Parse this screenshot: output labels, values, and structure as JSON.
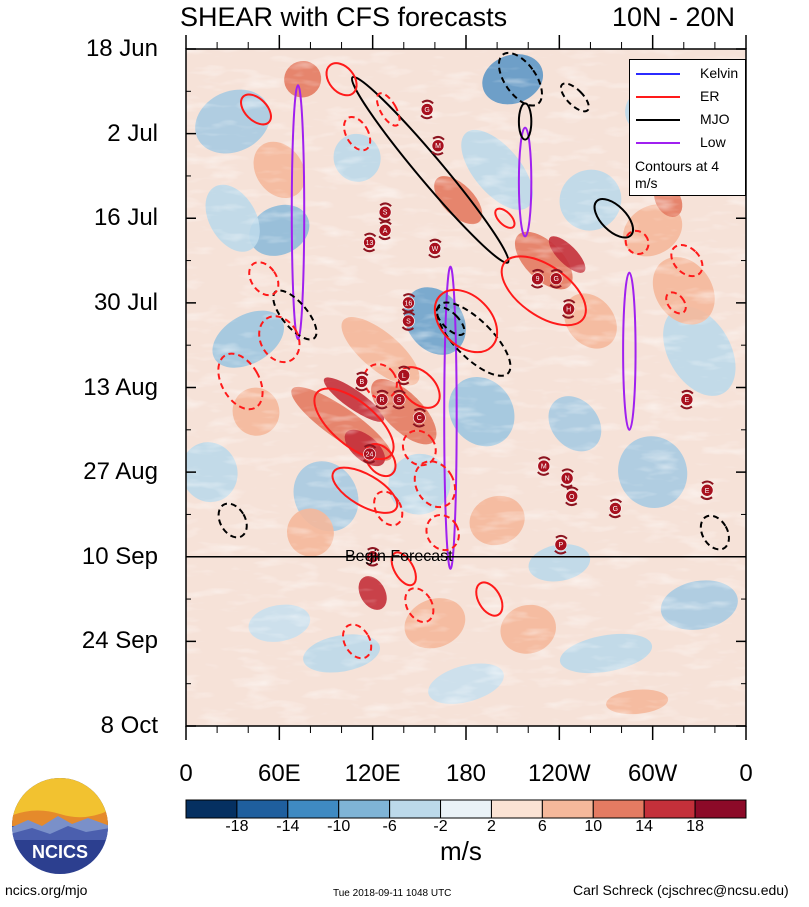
{
  "title": {
    "left": "SHEAR with CFS forecasts",
    "right": "10N - 20N"
  },
  "chart_data": {
    "type": "heatmap",
    "title": "SHEAR with CFS forecasts",
    "region": "10N - 20N",
    "x_axis": {
      "ticks": [
        "0",
        "60E",
        "120E",
        "180",
        "120W",
        "60W",
        "0"
      ],
      "range_deg": [
        0,
        360
      ]
    },
    "y_axis": {
      "ticks": [
        "18 Jun",
        "2 Jul",
        "16 Jul",
        "30 Jul",
        "13 Aug",
        "27 Aug",
        "10 Sep",
        "24 Sep",
        "8 Oct"
      ],
      "range_days": [
        0,
        112
      ]
    },
    "forecast_start": {
      "label": "Begin Forecast",
      "day": 84
    },
    "colorbar": {
      "units": "m/s",
      "levels": [
        -18,
        -14,
        -10,
        -6,
        -2,
        2,
        6,
        10,
        14,
        18
      ],
      "tick_labels": [
        "-18",
        "-14",
        "-10",
        "-6",
        "-2",
        "2",
        "6",
        "10",
        "14",
        "18"
      ],
      "colors": [
        "#053061",
        "#1f5f9e",
        "#3f8ac2",
        "#7fb4d6",
        "#bcd9ea",
        "#eaf2f7",
        "#fbe3d4",
        "#f5b89b",
        "#e47b62",
        "#c4303a",
        "#8c0a28"
      ]
    },
    "legend": [
      {
        "name": "Kelvin",
        "color": "#2b2bff"
      },
      {
        "name": "ER",
        "color": "#ff1a1a"
      },
      {
        "name": "MJO",
        "color": "#000000"
      },
      {
        "name": "Low",
        "color": "#a020f0"
      }
    ],
    "legend_note": "Contours at 4 m/s",
    "storms": [
      {
        "label": "G",
        "lon": 155,
        "day": 10
      },
      {
        "label": "M",
        "lon": 162,
        "day": 16
      },
      {
        "label": "S",
        "lon": 128,
        "day": 27
      },
      {
        "label": "A",
        "lon": 128,
        "day": 30
      },
      {
        "label": "13",
        "lon": 118,
        "day": 32
      },
      {
        "label": "W",
        "lon": 160,
        "day": 33
      },
      {
        "label": "9",
        "lon": 226,
        "day": 38
      },
      {
        "label": "G",
        "lon": 238,
        "day": 38
      },
      {
        "label": "16",
        "lon": 143,
        "day": 42
      },
      {
        "label": "S",
        "lon": 143,
        "day": 45
      },
      {
        "label": "H",
        "lon": 246,
        "day": 43
      },
      {
        "label": "B",
        "lon": 113,
        "day": 55
      },
      {
        "label": "R",
        "lon": 126,
        "day": 58
      },
      {
        "label": "L",
        "lon": 140,
        "day": 54
      },
      {
        "label": "S",
        "lon": 137,
        "day": 58
      },
      {
        "label": "C",
        "lon": 150,
        "day": 61
      },
      {
        "label": "24",
        "lon": 118,
        "day": 67
      },
      {
        "label": "M",
        "lon": 230,
        "day": 69
      },
      {
        "label": "N",
        "lon": 245,
        "day": 71
      },
      {
        "label": "O",
        "lon": 248,
        "day": 74
      },
      {
        "label": "G",
        "lon": 276,
        "day": 76
      },
      {
        "label": "P",
        "lon": 241,
        "day": 82
      },
      {
        "label": "27",
        "lon": 120,
        "day": 84
      },
      {
        "label": "E",
        "lon": 322,
        "day": 58
      },
      {
        "label": "E",
        "lon": 335,
        "day": 73
      }
    ]
  },
  "footer": {
    "left": "ncics.org/mjo",
    "middle": "Tue 2018-09-11 1048 UTC",
    "right": "Carl Schreck (cjschrec@ncsu.edu)",
    "logo_text": "NCICS"
  }
}
